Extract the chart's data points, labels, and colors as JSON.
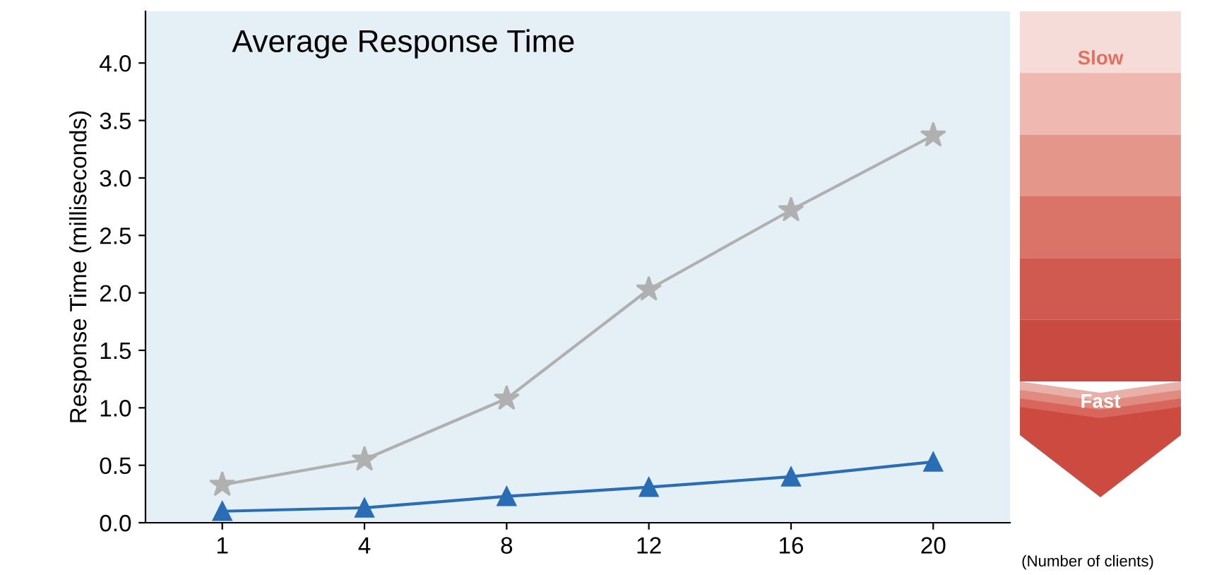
{
  "chart_data": {
    "type": "line",
    "title": "Average Response Time",
    "ylabel": "Response Time (milliseconds)",
    "xlabel": "(Number of clients)",
    "categories": [
      "1",
      "4",
      "8",
      "12",
      "16",
      "20"
    ],
    "series": [
      {
        "color": "#b0b0b0",
        "marker": "star",
        "values": [
          0.33,
          0.55,
          1.08,
          2.03,
          2.72,
          3.37
        ]
      },
      {
        "color": "#2a6db5",
        "marker": "triangle",
        "values": [
          0.1,
          0.13,
          0.23,
          0.31,
          0.4,
          0.53
        ]
      }
    ],
    "ylim": [
      0,
      4.45
    ],
    "yticks": [
      {
        "value": 0,
        "label": "0.0"
      },
      0.5,
      {
        "value": 1,
        "label": "1.0"
      },
      1.5,
      {
        "value": 2,
        "label": "2.0"
      },
      2.5,
      {
        "value": 3,
        "label": "3.0"
      },
      3.5,
      {
        "value": 4,
        "label": "4.0"
      }
    ],
    "grid": false,
    "legend": false,
    "line_style": "solid",
    "annotations": [
      "Slow",
      "Fast"
    ]
  }
}
